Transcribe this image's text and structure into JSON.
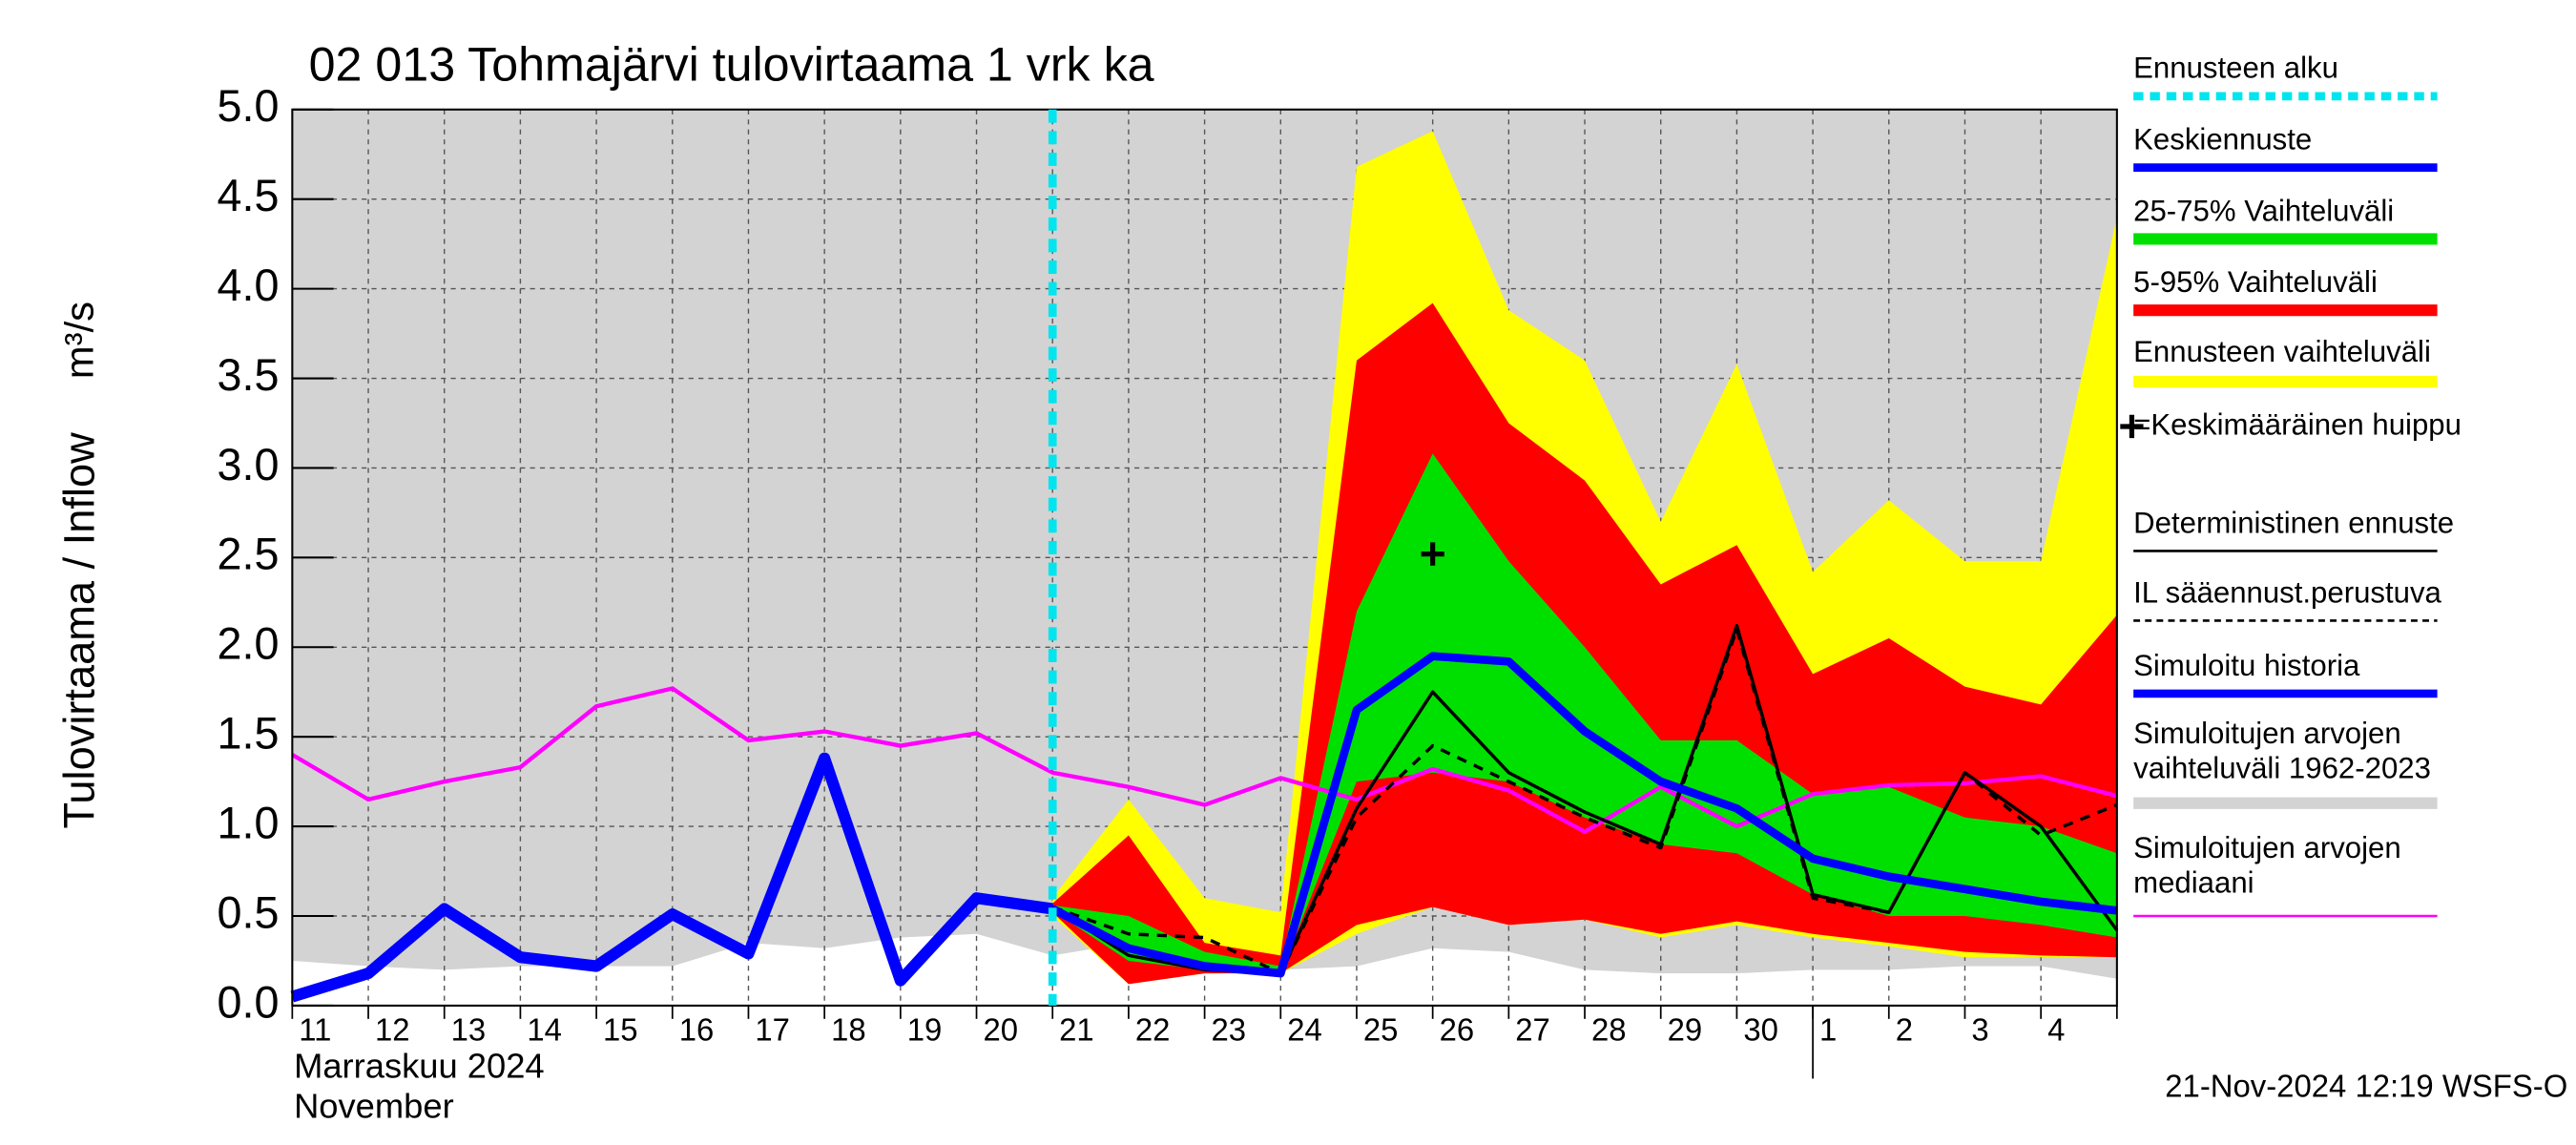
{
  "chart_data": {
    "type": "line",
    "title": "02 013 Tohmajärvi tulovirtaama 1 vrk ka",
    "y_label": "Tulovirtaama / Inflow",
    "y_unit": "m³/s",
    "x_label": [
      "Marraskuu 2024",
      "November"
    ],
    "footer": "21-Nov-2024 12:19 WSFS-O",
    "categories": [
      "11",
      "12",
      "13",
      "14",
      "15",
      "16",
      "17",
      "18",
      "19",
      "20",
      "21",
      "22",
      "23",
      "24",
      "25",
      "26",
      "27",
      "28",
      "29",
      "30",
      "1",
      "2",
      "3",
      "4",
      null
    ],
    "ylim": [
      0,
      5
    ],
    "yticks": [
      {
        "value": 0,
        "label": "0.0"
      },
      0.5,
      {
        "value": 1,
        "label": "1.0"
      },
      1.5,
      {
        "value": 2,
        "label": "2.0"
      },
      2.5,
      {
        "value": 3,
        "label": "3.0"
      },
      3.5,
      {
        "value": 4,
        "label": "4.0"
      },
      4.5,
      {
        "value": 5,
        "label": "5.0"
      }
    ],
    "grid": true,
    "forecast_start": {
      "name": "Ennusteen alku",
      "x": 10,
      "color": "#00e5ee"
    },
    "peak": {
      "name": "=Keskimääräinen huippu",
      "x": 15,
      "value": 2.52,
      "color": "#000000"
    },
    "series": [
      {
        "name": "Keskiennuste",
        "color": "#0000ff",
        "style": "line",
        "width": 5,
        "values": [
          null,
          null,
          null,
          null,
          null,
          null,
          null,
          null,
          null,
          null,
          0.54,
          0.32,
          0.22,
          0.18,
          1.65,
          1.95,
          1.92,
          1.53,
          1.25,
          1.1,
          0.82,
          0.72,
          0.65,
          0.58,
          0.53
        ]
      },
      {
        "name": "25-75% Vaihteluväli",
        "color": "#00e000",
        "style": "band",
        "low": [
          null,
          null,
          null,
          null,
          null,
          null,
          null,
          null,
          null,
          null,
          0.53,
          0.25,
          0.2,
          0.18,
          1.25,
          1.3,
          1.25,
          1.05,
          0.9,
          0.85,
          0.62,
          0.5,
          0.5,
          0.45,
          0.38
        ],
        "values": [
          null,
          null,
          null,
          null,
          null,
          null,
          null,
          null,
          null,
          null,
          0.56,
          0.5,
          0.3,
          0.22,
          2.2,
          3.08,
          2.48,
          2.0,
          1.48,
          1.48,
          1.18,
          1.22,
          1.05,
          1.0,
          0.85
        ]
      },
      {
        "name": "5-95% Vaihteluväli",
        "color": "#ff0000",
        "style": "band",
        "low": [
          null,
          null,
          null,
          null,
          null,
          null,
          null,
          null,
          null,
          null,
          0.52,
          0.12,
          0.18,
          0.18,
          0.45,
          0.55,
          0.45,
          0.48,
          0.4,
          0.47,
          0.4,
          0.35,
          0.3,
          0.28,
          0.27
        ],
        "values": [
          null,
          null,
          null,
          null,
          null,
          null,
          null,
          null,
          null,
          null,
          0.57,
          0.95,
          0.35,
          0.28,
          3.6,
          3.92,
          3.25,
          2.93,
          2.35,
          2.57,
          1.85,
          2.05,
          1.78,
          1.68,
          2.18
        ]
      },
      {
        "name": "Ennusteen vaihteluväli",
        "color": "#ffff00",
        "style": "band",
        "low": [
          null,
          null,
          null,
          null,
          null,
          null,
          null,
          null,
          null,
          null,
          0.5,
          0.12,
          0.18,
          0.18,
          0.4,
          0.55,
          0.45,
          0.48,
          0.38,
          0.45,
          0.38,
          0.33,
          0.27,
          0.27,
          0.27
        ],
        "values": [
          null,
          null,
          null,
          null,
          null,
          null,
          null,
          null,
          null,
          null,
          0.6,
          1.15,
          0.6,
          0.52,
          4.68,
          4.88,
          3.88,
          3.6,
          2.7,
          3.58,
          2.42,
          2.82,
          2.48,
          2.48,
          4.4
        ]
      },
      {
        "name": "Deterministinen ennuste",
        "color": "#000000",
        "style": "line",
        "width": 2,
        "values": [
          null,
          null,
          null,
          null,
          null,
          null,
          null,
          null,
          null,
          null,
          0.55,
          0.28,
          0.2,
          0.18,
          1.1,
          1.75,
          1.3,
          1.08,
          0.9,
          2.12,
          0.62,
          0.52,
          1.3,
          1.0,
          0.42
        ]
      },
      {
        "name": "IL sääennust.perustuva",
        "color": "#000000",
        "style": "dashed",
        "width": 2,
        "values": [
          null,
          null,
          null,
          null,
          null,
          null,
          null,
          null,
          null,
          null,
          0.55,
          0.4,
          0.38,
          0.18,
          1.05,
          1.45,
          1.25,
          1.05,
          0.88,
          2.1,
          0.6,
          0.52,
          1.3,
          0.95,
          1.12
        ]
      },
      {
        "name": "Simuloitu historia",
        "color": "#0000ff",
        "style": "line",
        "width": 7,
        "values": [
          0.05,
          0.18,
          0.54,
          0.27,
          0.22,
          0.51,
          0.29,
          1.38,
          0.14,
          0.6,
          0.54,
          null,
          null,
          null,
          null,
          null,
          null,
          null,
          null,
          null,
          null,
          null,
          null,
          null,
          null
        ]
      },
      {
        "name": "Simuloitujen arvojen vaihteluväli 1962-2023",
        "color": "#d3d3d3",
        "style": "band",
        "low": [
          0.25,
          0.22,
          0.2,
          0.22,
          0.22,
          0.22,
          0.35,
          0.32,
          0.38,
          0.4,
          0.28,
          0.35,
          0.25,
          0.2,
          0.22,
          0.32,
          0.3,
          0.2,
          0.18,
          0.18,
          0.2,
          0.2,
          0.22,
          0.22,
          0.15
        ],
        "values": [
          5,
          5,
          5,
          5,
          5,
          5,
          5,
          5,
          5,
          5,
          5,
          5,
          5,
          5,
          5,
          5,
          5,
          5,
          5,
          5,
          5,
          5,
          5,
          5,
          5
        ]
      },
      {
        "name": "Simuloitujen arvojen mediaani",
        "color": "#ff00ff",
        "style": "line",
        "width": 2.5,
        "values": [
          1.4,
          1.15,
          1.25,
          1.33,
          1.67,
          1.77,
          1.48,
          1.53,
          1.45,
          1.52,
          1.3,
          1.22,
          1.12,
          1.27,
          1.15,
          1.32,
          1.2,
          0.97,
          1.22,
          1.0,
          1.18,
          1.23,
          1.24,
          1.28,
          1.17
        ]
      }
    ]
  }
}
